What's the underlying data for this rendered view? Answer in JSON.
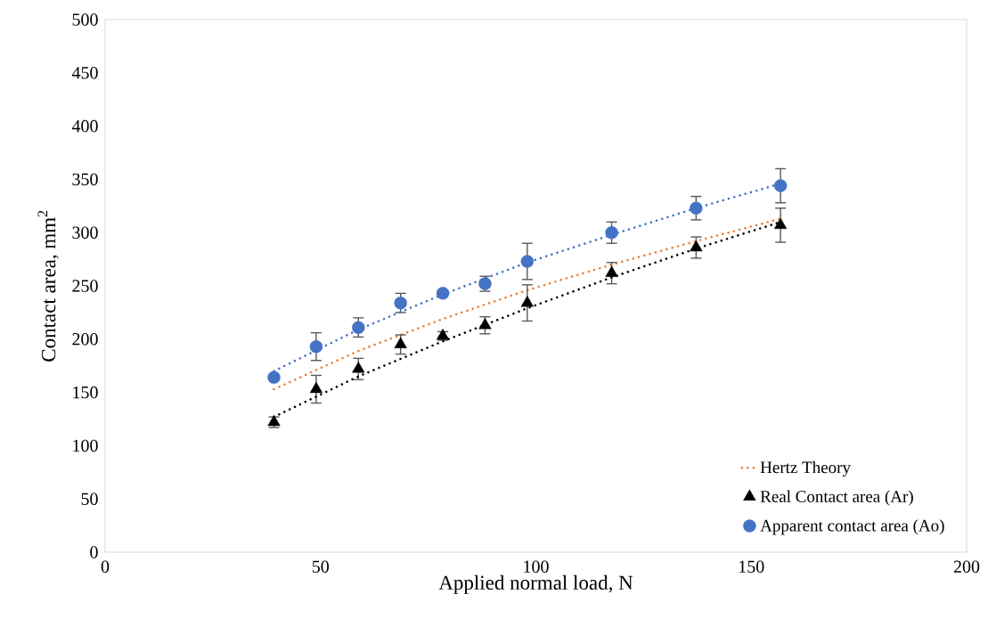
{
  "chart_data": {
    "type": "scatter",
    "xlabel": "Applied normal load, N",
    "ylabel": "Contact area, mm$^{2}$",
    "xlim": [
      0,
      200
    ],
    "xticks": [
      0,
      50,
      100,
      150,
      200
    ],
    "ylim": [
      0,
      500
    ],
    "yticks": [
      0,
      50,
      100,
      150,
      200,
      250,
      300,
      350,
      400,
      450,
      500
    ],
    "grid": false,
    "legend": "bottom right",
    "series": [
      {
        "name": "Hertz Theory",
        "type": "line",
        "line_style": "dotted",
        "marker": "none",
        "color": "#ed7d31",
        "x": [
          39.2,
          58.8,
          78.4,
          98,
          117.6,
          137.2,
          156.8
        ],
        "values": [
          153,
          189,
          219,
          246,
          270,
          292,
          313
        ]
      },
      {
        "name": "Real Contact area (Ar)",
        "marker": "triangle",
        "color": "#000000",
        "x": [
          39.2,
          49,
          58.8,
          68.6,
          78.4,
          88.2,
          98,
          117.6,
          137.2,
          156.8
        ],
        "values": [
          122,
          153,
          172,
          195,
          203,
          213,
          234,
          262,
          286,
          307
        ],
        "errors": [
          5,
          13,
          10,
          9,
          4,
          8,
          17,
          10,
          10,
          16
        ]
      },
      {
        "name": "Apparent contact area (Ao)",
        "marker": "circle",
        "color": "#4472c4",
        "x": [
          39.2,
          49,
          58.8,
          68.6,
          78.4,
          88.2,
          98,
          117.6,
          137.2,
          156.8
        ],
        "values": [
          164,
          193,
          211,
          234,
          243,
          252,
          273,
          300,
          323,
          344
        ],
        "errors": [
          null,
          13,
          9,
          9,
          null,
          7,
          17,
          10,
          11,
          16
        ]
      },
      {
        "type": "line",
        "line_style": "dotted",
        "marker": "none",
        "color": "#000000",
        "x": [
          39.2,
          58.8,
          78.4,
          98,
          117.6,
          137.2,
          156.8
        ],
        "values": [
          127,
          165,
          198,
          229,
          258,
          285,
          310
        ]
      },
      {
        "type": "line",
        "line_style": "dotted",
        "marker": "none",
        "color": "#4472c4",
        "x": [
          39.2,
          58.8,
          78.4,
          98,
          117.6,
          137.2,
          156.8
        ],
        "values": [
          170,
          209,
          242,
          272,
          298,
          323,
          346
        ]
      }
    ]
  }
}
